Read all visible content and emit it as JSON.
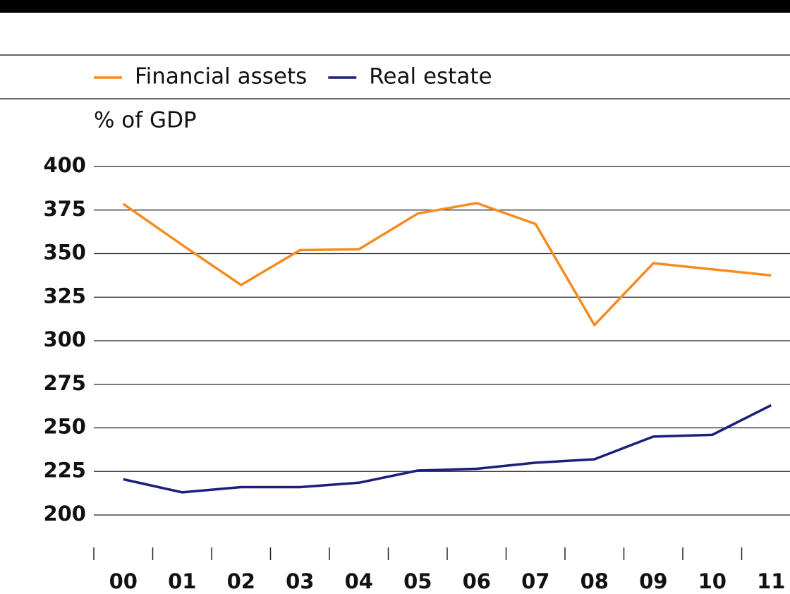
{
  "chart_data": {
    "type": "line",
    "y_label": "% of GDP",
    "categories": [
      "00",
      "01",
      "02",
      "03",
      "04",
      "05",
      "06",
      "07",
      "08",
      "09",
      "10",
      "11"
    ],
    "series": [
      {
        "name": "Financial assets",
        "color": "#f68b1f",
        "values": [
          378.5,
          355,
          332,
          352,
          352.5,
          373,
          379,
          367,
          309,
          344.5,
          341,
          337.5
        ]
      },
      {
        "name": "Real estate",
        "color": "#1c1f7a",
        "values": [
          220.5,
          213,
          216,
          216,
          218.5,
          225.5,
          226.5,
          230,
          232,
          245,
          246,
          263
        ]
      }
    ],
    "ylim": [
      200,
      400
    ],
    "yticks": [
      200,
      225,
      250,
      275,
      300,
      325,
      350,
      375,
      400
    ],
    "grid": true
  }
}
